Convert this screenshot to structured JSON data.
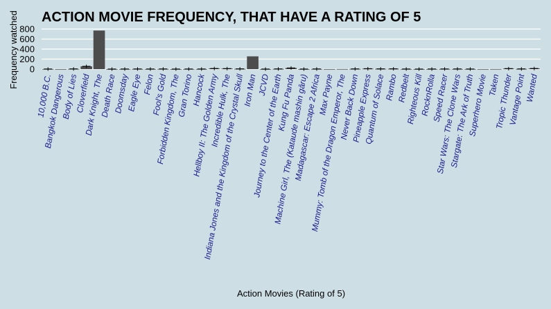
{
  "chart_data": {
    "type": "bar",
    "title": "ACTION MOVIE FREQUENCY, THAT HAVE A RATING OF 5",
    "xlabel": "Action Movies (Rating of 5)",
    "ylabel": "Frequency watched",
    "ylim": [
      -40,
      860
    ],
    "yticks": [
      0,
      200,
      400,
      600,
      800
    ],
    "grid": true,
    "bar_color": "#4d4d4d",
    "error_color": "#000000",
    "categories": [
      "10,000 B.C.",
      "Bangkok Dangerous",
      "Body of Lies",
      "Cloverfield",
      "Dark Knight, The",
      "Death Race",
      "Doomsday",
      "Eagle Eye",
      "Felon",
      "Fool's Gold",
      "Forbidden Kingdom, The",
      "Gran Torino",
      "Hancock",
      "Hellboy II: The Golden Army",
      "Incredible Hulk, The",
      "Indiana Jones and the Kingdom of the Crystal Skull",
      "Iron Man",
      "JCVD",
      "Journey to the Center of the Earth",
      "Kung Fu Panda",
      "Machine Girl, The (Kataude mashin gâru)",
      "Madagascar: Escape 2 Africa",
      "Max Payne",
      "Mummy: Tomb of the Dragon Emperor, The",
      "Never Back Down",
      "Pineapple Express",
      "Quantum of Solace",
      "Rambo",
      "Redbelt",
      "Righteous Kill",
      "RocknRolla",
      "Speed Racer",
      "Star Wars: The Clone Wars",
      "Stargate: The Ark of Truth",
      "Superhero Movie",
      "Taken",
      "Tropic Thunder",
      "Vantage Point",
      "Wanted"
    ],
    "values": [
      2,
      1,
      4,
      55,
      770,
      1,
      2,
      3,
      2,
      3,
      1,
      2,
      2,
      12,
      10,
      5,
      255,
      1,
      4,
      22,
      1,
      3,
      1,
      2,
      4,
      8,
      5,
      6,
      2,
      1,
      2,
      3,
      3,
      2,
      1,
      2,
      10,
      4,
      12
    ],
    "error_bars": [
      true,
      false,
      true,
      true,
      false,
      true,
      true,
      true,
      true,
      true,
      true,
      true,
      true,
      true,
      true,
      true,
      false,
      true,
      true,
      true,
      true,
      true,
      false,
      false,
      true,
      true,
      true,
      true,
      true,
      true,
      true,
      true,
      true,
      true,
      false,
      false,
      true,
      true,
      true
    ]
  }
}
